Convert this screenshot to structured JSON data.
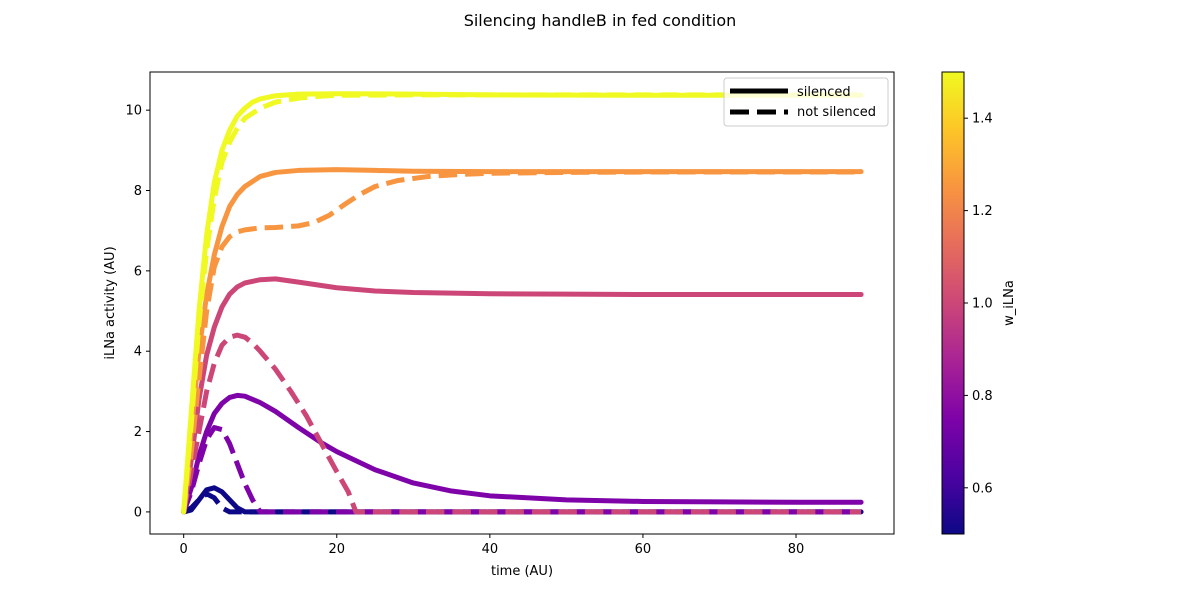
{
  "chart_data": {
    "type": "line",
    "title": "Silencing handleB in fed condition",
    "xlabel": "time (AU)",
    "ylabel": "iLNa activity (AU)",
    "xlim": [
      -4.4,
      92.8
    ],
    "ylim": [
      -0.55,
      10.95
    ],
    "xticks": [
      0,
      20,
      40,
      60,
      80
    ],
    "yticks": [
      0,
      2,
      4,
      6,
      8,
      10
    ],
    "grid": false,
    "legend": {
      "placement": "top-right",
      "entries": [
        {
          "label": "silenced",
          "style": "solid"
        },
        {
          "label": "not silenced",
          "style": "dashed"
        }
      ]
    },
    "colorbar": {
      "label": "w_iLNa",
      "colormap": "plasma",
      "range": [
        0.5,
        1.5
      ],
      "ticks": [
        0.6,
        0.8,
        1.0,
        1.2,
        1.4
      ]
    },
    "series": [
      {
        "w": 0.5,
        "style": "solid",
        "color": "#0d0887",
        "points": [
          [
            0,
            0
          ],
          [
            1,
            0.05
          ],
          [
            2,
            0.3
          ],
          [
            3,
            0.55
          ],
          [
            4,
            0.6
          ],
          [
            5,
            0.5
          ],
          [
            6,
            0.3
          ],
          [
            7,
            0.1
          ],
          [
            8,
            0
          ],
          [
            88.5,
            0
          ]
        ]
      },
      {
        "w": 0.5,
        "style": "dashed",
        "color": "#0d0887",
        "points": [
          [
            0,
            0
          ],
          [
            1,
            0.1
          ],
          [
            2,
            0.3
          ],
          [
            3,
            0.45
          ],
          [
            4,
            0.35
          ],
          [
            5,
            0.1
          ],
          [
            6,
            0
          ],
          [
            88.5,
            0
          ]
        ]
      },
      {
        "w": 0.75,
        "style": "solid",
        "color": "#7e03a8",
        "points": [
          [
            0,
            0
          ],
          [
            1,
            0.6
          ],
          [
            2,
            1.4
          ],
          [
            3,
            2.0
          ],
          [
            4,
            2.45
          ],
          [
            5,
            2.7
          ],
          [
            6,
            2.85
          ],
          [
            7,
            2.9
          ],
          [
            8,
            2.88
          ],
          [
            10,
            2.72
          ],
          [
            12,
            2.5
          ],
          [
            15,
            2.1
          ],
          [
            18,
            1.72
          ],
          [
            20,
            1.5
          ],
          [
            25,
            1.05
          ],
          [
            30,
            0.72
          ],
          [
            35,
            0.52
          ],
          [
            40,
            0.4
          ],
          [
            50,
            0.3
          ],
          [
            60,
            0.26
          ],
          [
            70,
            0.25
          ],
          [
            80,
            0.24
          ],
          [
            88.5,
            0.24
          ]
        ]
      },
      {
        "w": 0.75,
        "style": "dashed",
        "color": "#7e03a8",
        "points": [
          [
            0,
            0
          ],
          [
            1,
            0.5
          ],
          [
            2,
            1.2
          ],
          [
            3,
            1.8
          ],
          [
            4,
            2.1
          ],
          [
            5,
            2.05
          ],
          [
            6,
            1.7
          ],
          [
            7,
            1.2
          ],
          [
            8,
            0.7
          ],
          [
            9,
            0.3
          ],
          [
            10,
            0
          ],
          [
            88.5,
            0
          ]
        ]
      },
      {
        "w": 1.0,
        "style": "solid",
        "color": "#cc4778",
        "points": [
          [
            0,
            0
          ],
          [
            1,
            1.3
          ],
          [
            2,
            2.8
          ],
          [
            3,
            3.9
          ],
          [
            4,
            4.6
          ],
          [
            5,
            5.1
          ],
          [
            6,
            5.42
          ],
          [
            7,
            5.6
          ],
          [
            8,
            5.7
          ],
          [
            10,
            5.78
          ],
          [
            12,
            5.8
          ],
          [
            15,
            5.72
          ],
          [
            20,
            5.58
          ],
          [
            25,
            5.5
          ],
          [
            30,
            5.46
          ],
          [
            40,
            5.43
          ],
          [
            50,
            5.42
          ],
          [
            60,
            5.41
          ],
          [
            80,
            5.41
          ],
          [
            88.5,
            5.41
          ]
        ]
      },
      {
        "w": 1.0,
        "style": "dashed",
        "color": "#cc4778",
        "points": [
          [
            0,
            0
          ],
          [
            1,
            1.0
          ],
          [
            2,
            2.0
          ],
          [
            3,
            3.0
          ],
          [
            4,
            3.7
          ],
          [
            5,
            4.15
          ],
          [
            6,
            4.35
          ],
          [
            7,
            4.4
          ],
          [
            8,
            4.35
          ],
          [
            9,
            4.2
          ],
          [
            10,
            4.0
          ],
          [
            12,
            3.55
          ],
          [
            14,
            3.0
          ],
          [
            16,
            2.4
          ],
          [
            18,
            1.7
          ],
          [
            20,
            1.0
          ],
          [
            21.5,
            0.5
          ],
          [
            22.5,
            0
          ],
          [
            88.5,
            0
          ]
        ]
      },
      {
        "w": 1.25,
        "style": "solid",
        "color": "#f89540",
        "points": [
          [
            0,
            0
          ],
          [
            1,
            2.0
          ],
          [
            2,
            4.0
          ],
          [
            3,
            5.4
          ],
          [
            4,
            6.4
          ],
          [
            5,
            7.1
          ],
          [
            6,
            7.6
          ],
          [
            7,
            7.9
          ],
          [
            8,
            8.1
          ],
          [
            10,
            8.35
          ],
          [
            12,
            8.45
          ],
          [
            15,
            8.5
          ],
          [
            20,
            8.52
          ],
          [
            25,
            8.5
          ],
          [
            30,
            8.48
          ],
          [
            40,
            8.47
          ],
          [
            60,
            8.47
          ],
          [
            88.5,
            8.47
          ]
        ]
      },
      {
        "w": 1.25,
        "style": "dashed",
        "color": "#f89540",
        "points": [
          [
            0,
            0
          ],
          [
            1,
            1.5
          ],
          [
            2,
            3.3
          ],
          [
            3,
            5.0
          ],
          [
            4,
            6.1
          ],
          [
            5,
            6.6
          ],
          [
            6,
            6.85
          ],
          [
            7,
            6.97
          ],
          [
            8,
            7.02
          ],
          [
            10,
            7.07
          ],
          [
            12,
            7.08
          ],
          [
            15,
            7.12
          ],
          [
            17,
            7.2
          ],
          [
            19,
            7.38
          ],
          [
            21,
            7.65
          ],
          [
            23,
            7.9
          ],
          [
            25,
            8.1
          ],
          [
            28,
            8.25
          ],
          [
            32,
            8.35
          ],
          [
            36,
            8.4
          ],
          [
            40,
            8.43
          ],
          [
            50,
            8.45
          ],
          [
            60,
            8.46
          ],
          [
            88.5,
            8.46
          ]
        ]
      },
      {
        "w": 1.5,
        "style": "solid",
        "color": "#f0f921",
        "points": [
          [
            0,
            0
          ],
          [
            1,
            2.5
          ],
          [
            2,
            5.0
          ],
          [
            3,
            6.9
          ],
          [
            4,
            8.2
          ],
          [
            5,
            9.0
          ],
          [
            6,
            9.5
          ],
          [
            7,
            9.85
          ],
          [
            8,
            10.05
          ],
          [
            9,
            10.2
          ],
          [
            10,
            10.28
          ],
          [
            12,
            10.36
          ],
          [
            15,
            10.4
          ],
          [
            20,
            10.41
          ],
          [
            30,
            10.4
          ],
          [
            40,
            10.38
          ],
          [
            60,
            10.37
          ],
          [
            88.5,
            10.37
          ]
        ]
      },
      {
        "w": 1.5,
        "style": "dashed",
        "color": "#f0f921",
        "points": [
          [
            0,
            0
          ],
          [
            1,
            2.2
          ],
          [
            2,
            4.7
          ],
          [
            3,
            6.5
          ],
          [
            4,
            7.8
          ],
          [
            5,
            8.7
          ],
          [
            6,
            9.2
          ],
          [
            7,
            9.55
          ],
          [
            8,
            9.8
          ],
          [
            10,
            10.05
          ],
          [
            12,
            10.2
          ],
          [
            15,
            10.3
          ],
          [
            18,
            10.35
          ],
          [
            20,
            10.37
          ],
          [
            30,
            10.38
          ],
          [
            40,
            10.38
          ],
          [
            88.5,
            10.38
          ]
        ]
      }
    ]
  }
}
